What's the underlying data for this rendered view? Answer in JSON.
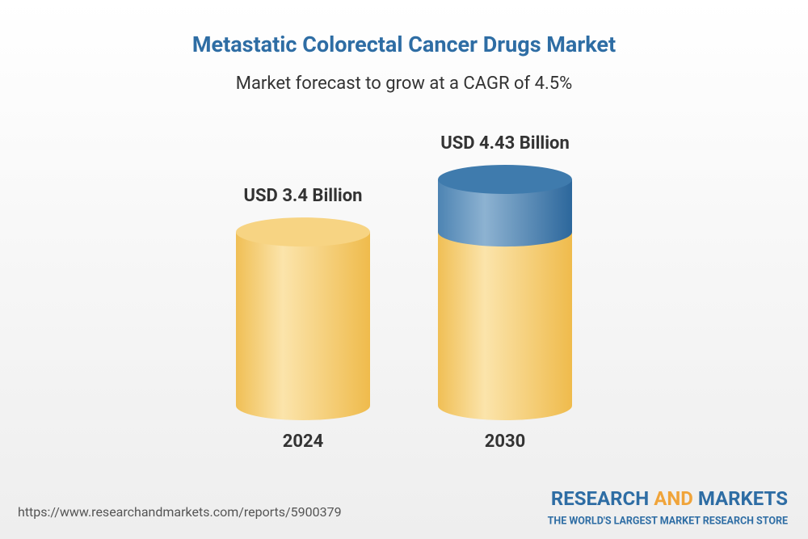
{
  "chart_data": {
    "type": "cylinder",
    "title": "Metastatic Colorectal Cancer Drugs Market",
    "subtitle": "Market forecast to grow at a CAGR of 4.5%",
    "categories": [
      "2024",
      "2030"
    ],
    "values": [
      3.4,
      4.43
    ],
    "value_labels": [
      "USD 3.4 Billion",
      "USD 4.43 Billion"
    ],
    "color": "#f2c35e",
    "growth_color": "#3f7bad"
  },
  "footer": {
    "url": "https://www.researchandmarkets.com/reports/5900379",
    "brand": [
      "RESEARCH",
      "AND",
      "MARKETS"
    ],
    "tagline": "THE WORLD'S LARGEST MARKET RESEARCH STORE"
  }
}
